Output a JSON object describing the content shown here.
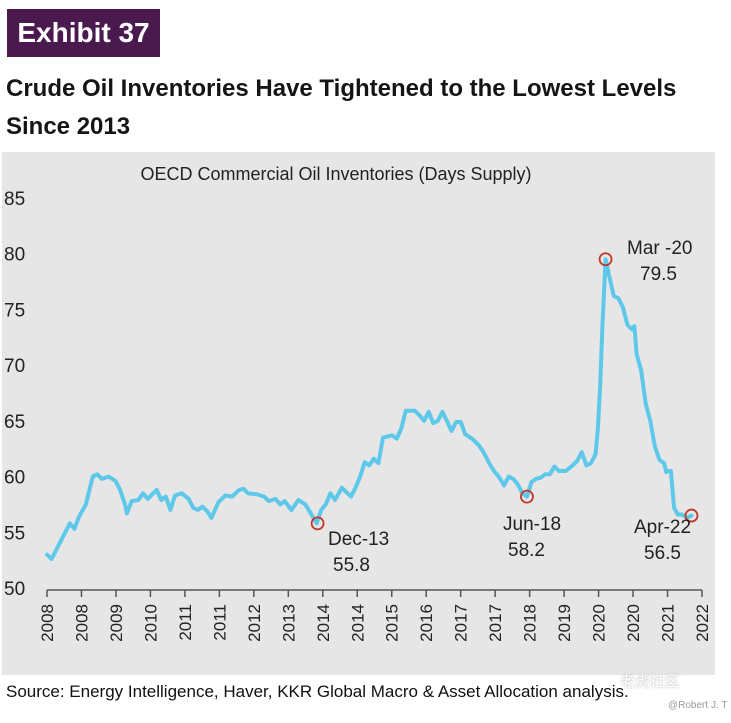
{
  "exhibit_label": "Exhibit 37",
  "title_line1": "Crude Oil Inventories Have Tightened to the Lowest Levels",
  "title_line2": "Since 2013",
  "source": "Source: Energy Intelligence, Haver, KKR Global Macro & Asset Allocation analysis.",
  "watermark": "老虎社区",
  "watermark_handle": "@Robert J. T",
  "chart_data": {
    "type": "line",
    "title": "OECD Commercial Oil Inventories (Days Supply)",
    "ylim": [
      50,
      85
    ],
    "yticks": [
      50,
      55,
      60,
      65,
      70,
      75,
      80,
      85
    ],
    "xlim": [
      2008.0,
      2022.33
    ],
    "x_tick_labels": [
      "2008",
      "2008",
      "2009",
      "2010",
      "2011",
      "2011",
      "2012",
      "2013",
      "2014",
      "2014",
      "2015",
      "2016",
      "2017",
      "2017",
      "2018",
      "2019",
      "2020",
      "2020",
      "2021",
      "2022"
    ],
    "line_color": "#5ec8ea",
    "series": [
      {
        "values": [
          [
            2008.0,
            53.0
          ],
          [
            2008.1,
            52.6
          ],
          [
            2008.2,
            53.4
          ],
          [
            2008.35,
            54.6
          ],
          [
            2008.5,
            55.8
          ],
          [
            2008.6,
            55.3
          ],
          [
            2008.7,
            56.4
          ],
          [
            2008.85,
            57.5
          ],
          [
            2009.0,
            60.0
          ],
          [
            2009.1,
            60.2
          ],
          [
            2009.2,
            59.8
          ],
          [
            2009.35,
            60.0
          ],
          [
            2009.5,
            59.6
          ],
          [
            2009.6,
            58.8
          ],
          [
            2009.7,
            57.6
          ],
          [
            2009.75,
            56.7
          ],
          [
            2009.85,
            57.8
          ],
          [
            2010.0,
            57.9
          ],
          [
            2010.1,
            58.5
          ],
          [
            2010.2,
            58.0
          ],
          [
            2010.3,
            58.4
          ],
          [
            2010.4,
            58.8
          ],
          [
            2010.5,
            57.9
          ],
          [
            2010.6,
            58.2
          ],
          [
            2010.7,
            57.0
          ],
          [
            2010.8,
            58.3
          ],
          [
            2010.95,
            58.5
          ],
          [
            2011.1,
            58.0
          ],
          [
            2011.2,
            57.2
          ],
          [
            2011.3,
            57.0
          ],
          [
            2011.4,
            57.3
          ],
          [
            2011.5,
            56.9
          ],
          [
            2011.6,
            56.3
          ],
          [
            2011.75,
            57.7
          ],
          [
            2011.9,
            58.3
          ],
          [
            2012.05,
            58.2
          ],
          [
            2012.2,
            58.8
          ],
          [
            2012.3,
            58.9
          ],
          [
            2012.4,
            58.5
          ],
          [
            2012.6,
            58.4
          ],
          [
            2012.75,
            58.2
          ],
          [
            2012.85,
            57.8
          ],
          [
            2013.0,
            58.0
          ],
          [
            2013.1,
            57.5
          ],
          [
            2013.2,
            57.8
          ],
          [
            2013.35,
            57.0
          ],
          [
            2013.5,
            57.9
          ],
          [
            2013.65,
            57.5
          ],
          [
            2013.8,
            56.5
          ],
          [
            2013.9,
            55.8
          ],
          [
            2014.0,
            57.0
          ],
          [
            2014.1,
            57.5
          ],
          [
            2014.2,
            58.5
          ],
          [
            2014.3,
            57.9
          ],
          [
            2014.45,
            59.0
          ],
          [
            2014.55,
            58.6
          ],
          [
            2014.65,
            58.2
          ],
          [
            2014.75,
            59.0
          ],
          [
            2014.85,
            60.0
          ],
          [
            2014.95,
            61.3
          ],
          [
            2015.05,
            61.0
          ],
          [
            2015.15,
            61.6
          ],
          [
            2015.25,
            61.2
          ],
          [
            2015.35,
            63.5
          ],
          [
            2015.45,
            63.6
          ],
          [
            2015.55,
            63.7
          ],
          [
            2015.65,
            63.4
          ],
          [
            2015.75,
            64.3
          ],
          [
            2015.85,
            65.9
          ],
          [
            2015.95,
            65.9
          ],
          [
            2016.05,
            65.9
          ],
          [
            2016.15,
            65.5
          ],
          [
            2016.25,
            65.0
          ],
          [
            2016.35,
            65.8
          ],
          [
            2016.45,
            64.8
          ],
          [
            2016.55,
            65.0
          ],
          [
            2016.65,
            65.8
          ],
          [
            2016.75,
            65.0
          ],
          [
            2016.85,
            64.1
          ],
          [
            2016.95,
            64.9
          ],
          [
            2017.05,
            64.9
          ],
          [
            2017.15,
            63.8
          ],
          [
            2017.3,
            63.4
          ],
          [
            2017.45,
            62.8
          ],
          [
            2017.55,
            62.2
          ],
          [
            2017.7,
            61.0
          ],
          [
            2017.8,
            60.4
          ],
          [
            2017.9,
            59.9
          ],
          [
            2018.0,
            59.2
          ],
          [
            2018.1,
            60.0
          ],
          [
            2018.2,
            59.8
          ],
          [
            2018.3,
            59.3
          ],
          [
            2018.4,
            58.5
          ],
          [
            2018.5,
            58.2
          ],
          [
            2018.6,
            59.5
          ],
          [
            2018.7,
            59.8
          ],
          [
            2018.8,
            59.9
          ],
          [
            2018.9,
            60.2
          ],
          [
            2019.0,
            60.2
          ],
          [
            2019.1,
            60.9
          ],
          [
            2019.2,
            60.5
          ],
          [
            2019.35,
            60.5
          ],
          [
            2019.5,
            61.0
          ],
          [
            2019.6,
            61.4
          ],
          [
            2019.7,
            62.2
          ],
          [
            2019.8,
            61.0
          ],
          [
            2019.9,
            61.2
          ],
          [
            2020.0,
            62.0
          ],
          [
            2020.05,
            64.2
          ],
          [
            2020.1,
            68.0
          ],
          [
            2020.15,
            73.5
          ],
          [
            2020.22,
            79.5
          ],
          [
            2020.3,
            78.0
          ],
          [
            2020.4,
            76.2
          ],
          [
            2020.5,
            76.0
          ],
          [
            2020.6,
            75.2
          ],
          [
            2020.7,
            73.6
          ],
          [
            2020.8,
            73.2
          ],
          [
            2020.85,
            73.5
          ],
          [
            2020.9,
            71.0
          ],
          [
            2021.0,
            69.5
          ],
          [
            2021.1,
            66.5
          ],
          [
            2021.2,
            65.0
          ],
          [
            2021.3,
            62.7
          ],
          [
            2021.4,
            61.5
          ],
          [
            2021.5,
            61.2
          ],
          [
            2021.55,
            60.4
          ],
          [
            2021.6,
            60.5
          ],
          [
            2021.65,
            60.5
          ],
          [
            2021.72,
            57.2
          ],
          [
            2021.8,
            56.6
          ],
          [
            2021.9,
            56.6
          ],
          [
            2022.0,
            56.3
          ],
          [
            2022.1,
            56.5
          ]
        ]
      }
    ],
    "annotations": [
      {
        "label": "Dec-13",
        "value_label": "55.8",
        "x": 2013.92,
        "y": 55.8
      },
      {
        "label": "Jun-18",
        "value_label": "58.2",
        "x": 2018.5,
        "y": 58.2
      },
      {
        "label": "Mar -20",
        "value_label": "79.5",
        "x": 2020.22,
        "y": 79.5
      },
      {
        "label": "Apr-22",
        "value_label": "56.5",
        "x": 2022.1,
        "y": 56.5
      }
    ]
  }
}
